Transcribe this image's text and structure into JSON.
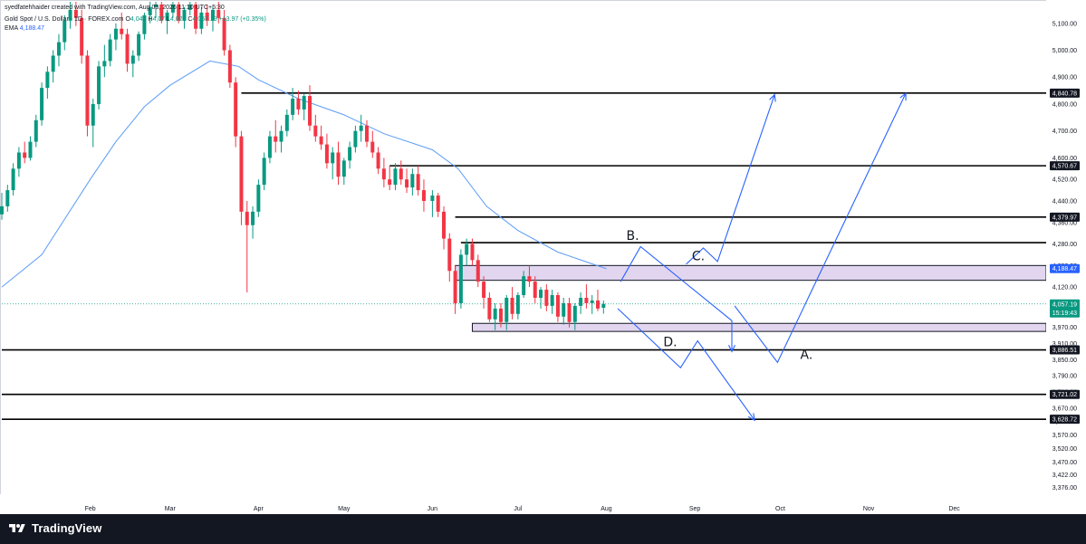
{
  "header": {
    "credit": "syedfatehhaider created with TradingView.com, Aug 03, 2026 11:10 UTC+5:30",
    "symbol": "Gold Spot / U.S. Dollar · 1D · FOREX.com",
    "ohlc": {
      "o_label": "O",
      "o_value": "4,043",
      "h_label": "H",
      "h_value": "4,07",
      "l_label": "L",
      "l_value": "4,021",
      "c_label": "C",
      "c_value": "4,057.19",
      "change": "+13.97 (+0.35%)"
    },
    "ema_label": "EMA",
    "ema_value": "4,188.47"
  },
  "price_axis": {
    "ticks": [
      "5,100.00",
      "5,000.00",
      "4,900.00",
      "4,800.00",
      "4,700.00",
      "4,600.00",
      "4,520.00",
      "4,440.00",
      "4,360.00",
      "4,280.00",
      "4,200.00",
      "4,120.00",
      "4,040.00",
      "3,970.00",
      "3,910.00",
      "3,850.00",
      "3,790.00",
      "3,730.00",
      "3,670.00",
      "3,620.00",
      "3,570.00",
      "3,520.00",
      "3,470.00",
      "3,422.00",
      "3,376.00"
    ],
    "level_tags": [
      {
        "label": "4,840.78",
        "price": 4840.78,
        "bg": "#131722"
      },
      {
        "label": "4,570.67",
        "price": 4570.67,
        "bg": "#131722"
      },
      {
        "label": "4,379.97",
        "price": 4379.97,
        "bg": "#131722"
      },
      {
        "label": "4,188.47",
        "price": 4188.47,
        "bg": "#2962ff"
      },
      {
        "label": "3,886.51",
        "price": 3886.51,
        "bg": "#131722"
      },
      {
        "label": "3,721.02",
        "price": 3721.02,
        "bg": "#131722"
      },
      {
        "label": "3,628.72",
        "price": 3628.72,
        "bg": "#131722"
      }
    ],
    "last_price": {
      "label": "4,057.19",
      "countdown": "15:19:43",
      "price": 4057.19,
      "bg": "#089981"
    }
  },
  "time_axis": {
    "ticks": [
      {
        "label": "Feb",
        "date": "2026-02-01"
      },
      {
        "label": "Mar",
        "date": "2026-03-01"
      },
      {
        "label": "Apr",
        "date": "2026-04-01"
      },
      {
        "label": "May",
        "date": "2026-05-01"
      },
      {
        "label": "Jun",
        "date": "2026-06-01"
      },
      {
        "label": "Jul",
        "date": "2026-07-01"
      },
      {
        "label": "Aug",
        "date": "2026-08-01"
      },
      {
        "label": "Sep",
        "date": "2026-09-01"
      },
      {
        "label": "Oct",
        "date": "2026-10-01"
      },
      {
        "label": "Nov",
        "date": "2026-11-01"
      },
      {
        "label": "Dec",
        "date": "2026-12-01"
      }
    ]
  },
  "horizontal_levels": [
    {
      "price": 4840.78,
      "from_date": "2026-03-26"
    },
    {
      "price": 4570.67,
      "from_date": "2026-05-17"
    },
    {
      "price": 4379.97,
      "from_date": "2026-06-09"
    },
    {
      "price": 4285.0,
      "from_date": "2026-06-11"
    },
    {
      "price": 3886.51,
      "from_date": "2026-01-01"
    },
    {
      "price": 3721.02,
      "from_date": "2026-01-01"
    },
    {
      "price": 3628.72,
      "from_date": "2026-01-01"
    }
  ],
  "zones": [
    {
      "from_date": "2026-06-09",
      "top": 4200,
      "bottom": 4145,
      "fill": "#e1d5ef"
    },
    {
      "from_date": "2026-06-15",
      "top": 3985,
      "bottom": 3955,
      "fill": "#e1d5ef"
    }
  ],
  "annotations": [
    {
      "text": "B.",
      "date": "2026-08-08",
      "price": 4295
    },
    {
      "text": "C.",
      "date": "2026-08-31",
      "price": 4220
    },
    {
      "text": "D.",
      "date": "2026-08-21",
      "price": 3900
    },
    {
      "text": "A.",
      "date": "2026-10-08",
      "price": 3853
    }
  ],
  "projection_paths": [
    {
      "name": "path-b",
      "arrow": true,
      "points": [
        [
          "2026-08-06",
          4140
        ],
        [
          "2026-08-13",
          4270
        ],
        [
          "2026-09-14",
          3995
        ],
        [
          "2026-09-14",
          3995
        ],
        [
          "2026-09-14",
          3880
        ]
      ]
    },
    {
      "name": "path-c",
      "arrow": true,
      "points": [
        [
          "2026-08-29",
          4205
        ],
        [
          "2026-09-04",
          4265
        ],
        [
          "2026-09-09",
          4215
        ],
        [
          "2026-09-29",
          4835
        ]
      ]
    },
    {
      "name": "path-d",
      "arrow": true,
      "points": [
        [
          "2026-08-05",
          4040
        ],
        [
          "2026-08-27",
          3820
        ],
        [
          "2026-09-02",
          3920
        ],
        [
          "2026-09-22",
          3625
        ]
      ]
    },
    {
      "name": "path-a",
      "arrow": true,
      "points": [
        [
          "2026-09-15",
          4050
        ],
        [
          "2026-09-30",
          3840
        ],
        [
          "2026-11-14",
          4840
        ]
      ]
    }
  ],
  "chart_data": {
    "type": "candlestick",
    "symbol": "Gold Spot / U.S. Dollar",
    "timeframe": "1D",
    "x_range": [
      "2026-01-01",
      "2026-12-31"
    ],
    "ylim": [
      3350,
      5180
    ],
    "ema": [
      [
        "2026-01-01",
        4120
      ],
      [
        "2026-01-15",
        4240
      ],
      [
        "2026-02-01",
        4520
      ],
      [
        "2026-02-10",
        4660
      ],
      [
        "2026-02-20",
        4790
      ],
      [
        "2026-03-01",
        4870
      ],
      [
        "2026-03-15",
        4960
      ],
      [
        "2026-03-25",
        4940
      ],
      [
        "2026-04-01",
        4890
      ],
      [
        "2026-04-15",
        4820
      ],
      [
        "2026-05-01",
        4760
      ],
      [
        "2026-05-15",
        4690
      ],
      [
        "2026-06-01",
        4630
      ],
      [
        "2026-06-10",
        4560
      ],
      [
        "2026-06-20",
        4420
      ],
      [
        "2026-07-01",
        4330
      ],
      [
        "2026-07-15",
        4250
      ],
      [
        "2026-08-01",
        4188
      ]
    ],
    "candles": [
      [
        "2026-01-01",
        4390,
        4470,
        4370,
        4420
      ],
      [
        "2026-01-03",
        4420,
        4500,
        4400,
        4480
      ],
      [
        "2026-01-05",
        4480,
        4580,
        4460,
        4560
      ],
      [
        "2026-01-07",
        4560,
        4640,
        4530,
        4620
      ],
      [
        "2026-01-09",
        4620,
        4660,
        4580,
        4600
      ],
      [
        "2026-01-11",
        4600,
        4680,
        4590,
        4660
      ],
      [
        "2026-01-13",
        4660,
        4760,
        4640,
        4740
      ],
      [
        "2026-01-15",
        4740,
        4880,
        4720,
        4860
      ],
      [
        "2026-01-17",
        4860,
        4940,
        4820,
        4920
      ],
      [
        "2026-01-19",
        4920,
        5000,
        4880,
        4980
      ],
      [
        "2026-01-21",
        4980,
        5060,
        4940,
        5030
      ],
      [
        "2026-01-23",
        5030,
        5130,
        5000,
        5110
      ],
      [
        "2026-01-25",
        5110,
        5180,
        5080,
        5150
      ],
      [
        "2026-01-27",
        5150,
        5180,
        5090,
        5120
      ],
      [
        "2026-01-29",
        5120,
        5150,
        4950,
        4980
      ],
      [
        "2026-01-31",
        4980,
        5000,
        4680,
        4720
      ],
      [
        "2026-02-02",
        4720,
        4820,
        4640,
        4800
      ],
      [
        "2026-02-04",
        4800,
        4960,
        4780,
        4940
      ],
      [
        "2026-02-06",
        4940,
        5020,
        4900,
        4960
      ],
      [
        "2026-02-08",
        4960,
        5060,
        4940,
        5040
      ],
      [
        "2026-02-10",
        5040,
        5100,
        5000,
        5080
      ],
      [
        "2026-02-12",
        5080,
        5140,
        5040,
        5060
      ],
      [
        "2026-02-14",
        5060,
        5080,
        4920,
        4950
      ],
      [
        "2026-02-16",
        4950,
        5000,
        4900,
        4980
      ],
      [
        "2026-02-18",
        4980,
        5070,
        4960,
        5060
      ],
      [
        "2026-02-20",
        5060,
        5140,
        5040,
        5130
      ],
      [
        "2026-02-22",
        5130,
        5180,
        5100,
        5160
      ],
      [
        "2026-02-24",
        5160,
        5180,
        5120,
        5170
      ],
      [
        "2026-02-26",
        5170,
        5180,
        5100,
        5110
      ],
      [
        "2026-02-28",
        5110,
        5150,
        5060,
        5140
      ],
      [
        "2026-03-02",
        5140,
        5180,
        5120,
        5170
      ],
      [
        "2026-03-04",
        5170,
        5180,
        5100,
        5110
      ],
      [
        "2026-03-06",
        5110,
        5160,
        5080,
        5150
      ],
      [
        "2026-03-08",
        5150,
        5180,
        5130,
        5170
      ],
      [
        "2026-03-10",
        5170,
        5180,
        5060,
        5080
      ],
      [
        "2026-03-12",
        5080,
        5160,
        5060,
        5140
      ],
      [
        "2026-03-14",
        5140,
        5170,
        5090,
        5110
      ],
      [
        "2026-03-16",
        5110,
        5160,
        5070,
        5150
      ],
      [
        "2026-03-18",
        5150,
        5180,
        5100,
        5120
      ],
      [
        "2026-03-20",
        5120,
        5150,
        4980,
        5000
      ],
      [
        "2026-03-22",
        5000,
        5020,
        4860,
        4880
      ],
      [
        "2026-03-24",
        4880,
        4900,
        4640,
        4680
      ],
      [
        "2026-03-26",
        4680,
        4700,
        4350,
        4400
      ],
      [
        "2026-03-28",
        4400,
        4440,
        4100,
        4350
      ],
      [
        "2026-03-30",
        4350,
        4420,
        4300,
        4400
      ],
      [
        "2026-04-01",
        4400,
        4520,
        4380,
        4500
      ],
      [
        "2026-04-03",
        4500,
        4620,
        4480,
        4600
      ],
      [
        "2026-04-05",
        4600,
        4700,
        4580,
        4680
      ],
      [
        "2026-04-07",
        4680,
        4740,
        4620,
        4660
      ],
      [
        "2026-04-09",
        4660,
        4720,
        4620,
        4700
      ],
      [
        "2026-04-11",
        4700,
        4780,
        4680,
        4760
      ],
      [
        "2026-04-13",
        4760,
        4860,
        4740,
        4820
      ],
      [
        "2026-04-15",
        4820,
        4850,
        4760,
        4780
      ],
      [
        "2026-04-17",
        4780,
        4840,
        4740,
        4830
      ],
      [
        "2026-04-19",
        4830,
        4870,
        4700,
        4720
      ],
      [
        "2026-04-21",
        4720,
        4760,
        4660,
        4680
      ],
      [
        "2026-04-23",
        4680,
        4720,
        4630,
        4650
      ],
      [
        "2026-04-25",
        4650,
        4690,
        4560,
        4580
      ],
      [
        "2026-04-27",
        4580,
        4640,
        4520,
        4620
      ],
      [
        "2026-04-29",
        4620,
        4660,
        4500,
        4530
      ],
      [
        "2026-05-01",
        4530,
        4600,
        4500,
        4590
      ],
      [
        "2026-05-03",
        4590,
        4660,
        4560,
        4640
      ],
      [
        "2026-05-05",
        4640,
        4720,
        4620,
        4700
      ],
      [
        "2026-05-07",
        4700,
        4760,
        4660,
        4720
      ],
      [
        "2026-05-09",
        4720,
        4740,
        4640,
        4660
      ],
      [
        "2026-05-11",
        4660,
        4700,
        4600,
        4620
      ],
      [
        "2026-05-13",
        4620,
        4640,
        4540,
        4560
      ],
      [
        "2026-05-15",
        4560,
        4600,
        4490,
        4520
      ],
      [
        "2026-05-17",
        4520,
        4570,
        4480,
        4500
      ],
      [
        "2026-05-19",
        4500,
        4580,
        4480,
        4560
      ],
      [
        "2026-05-21",
        4560,
        4590,
        4500,
        4520
      ],
      [
        "2026-05-23",
        4520,
        4560,
        4470,
        4490
      ],
      [
        "2026-05-25",
        4490,
        4560,
        4460,
        4540
      ],
      [
        "2026-05-27",
        4540,
        4570,
        4460,
        4480
      ],
      [
        "2026-05-29",
        4480,
        4520,
        4400,
        4440
      ],
      [
        "2026-06-01",
        4440,
        4480,
        4380,
        4460
      ],
      [
        "2026-06-03",
        4460,
        4470,
        4380,
        4400
      ],
      [
        "2026-06-05",
        4400,
        4420,
        4260,
        4300
      ],
      [
        "2026-06-07",
        4300,
        4320,
        4140,
        4180
      ],
      [
        "2026-06-09",
        4180,
        4200,
        4020,
        4060
      ],
      [
        "2026-06-11",
        4060,
        4260,
        4040,
        4240
      ],
      [
        "2026-06-13",
        4240,
        4300,
        4200,
        4280
      ],
      [
        "2026-06-15",
        4280,
        4300,
        4200,
        4220
      ],
      [
        "2026-06-17",
        4220,
        4240,
        4120,
        4140
      ],
      [
        "2026-06-19",
        4140,
        4160,
        4040,
        4080
      ],
      [
        "2026-06-21",
        4080,
        4100,
        3990,
        4000
      ],
      [
        "2026-06-23",
        4000,
        4060,
        3960,
        4040
      ],
      [
        "2026-06-25",
        4040,
        4060,
        3970,
        3990
      ],
      [
        "2026-06-27",
        3990,
        4090,
        3960,
        4080
      ],
      [
        "2026-06-29",
        4080,
        4120,
        4000,
        4020
      ],
      [
        "2026-07-01",
        4020,
        4100,
        4000,
        4090
      ],
      [
        "2026-07-03",
        4090,
        4180,
        4080,
        4160
      ],
      [
        "2026-07-05",
        4160,
        4200,
        4120,
        4140
      ],
      [
        "2026-07-07",
        4140,
        4160,
        4060,
        4080
      ],
      [
        "2026-07-09",
        4080,
        4120,
        4040,
        4110
      ],
      [
        "2026-07-11",
        4110,
        4130,
        4030,
        4050
      ],
      [
        "2026-07-13",
        4050,
        4110,
        4020,
        4090
      ],
      [
        "2026-07-15",
        4090,
        4100,
        3990,
        4010
      ],
      [
        "2026-07-17",
        4010,
        4080,
        3980,
        4060
      ],
      [
        "2026-07-19",
        4060,
        4080,
        3970,
        3990
      ],
      [
        "2026-07-21",
        3990,
        4060,
        3960,
        4050
      ],
      [
        "2026-07-23",
        4050,
        4100,
        4020,
        4080
      ],
      [
        "2026-07-25",
        4080,
        4130,
        4040,
        4060
      ],
      [
        "2026-07-27",
        4060,
        4090,
        4020,
        4070
      ],
      [
        "2026-07-29",
        4070,
        4110,
        4030,
        4040
      ],
      [
        "2026-07-31",
        4043,
        4070,
        4021,
        4057
      ]
    ]
  }
}
